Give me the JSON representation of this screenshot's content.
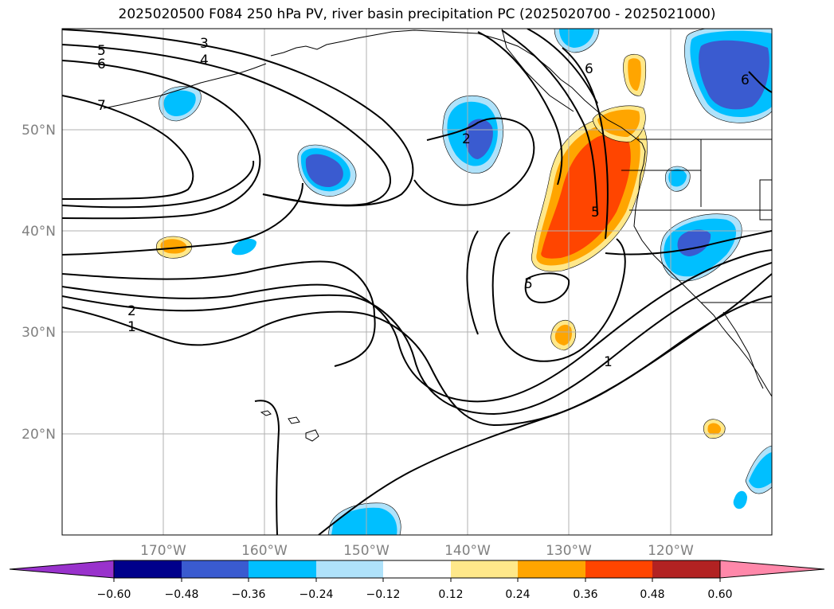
{
  "title": "2025020500 F084 250 hPa PV, river basin precipitation PC (2025020700 - 2025021000)",
  "lat_labels": [
    "50°N",
    "40°N",
    "30°N",
    "20°N"
  ],
  "lon_labels": [
    "170°W",
    "160°W",
    "150°W",
    "140°W",
    "130°W",
    "120°W"
  ],
  "contour_labels": [
    "3",
    "5",
    "6",
    "4",
    "7",
    "2",
    "6",
    "6",
    "5",
    "5",
    "2",
    "1",
    "1"
  ],
  "colorbar": {
    "ticks": [
      "−0.60",
      "−0.48",
      "−0.36",
      "−0.24",
      "−0.12",
      "0.12",
      "0.24",
      "0.36",
      "0.48",
      "0.60"
    ],
    "colors": [
      "#9932cc",
      "#00008b",
      "#3a5bd0",
      "#00bfff",
      "#afe2fa",
      "#ffffff",
      "#ffe88a",
      "#ffa500",
      "#ff4500",
      "#b22222",
      "#ff88aa"
    ]
  },
  "fill_colors": {
    "neg_light": "#afe2fa",
    "neg_mid": "#00bfff",
    "neg_strong": "#3a5bd0",
    "pos_light": "#ffe88a",
    "pos_mid": "#ffa500",
    "pos_strong": "#ff4500"
  }
}
